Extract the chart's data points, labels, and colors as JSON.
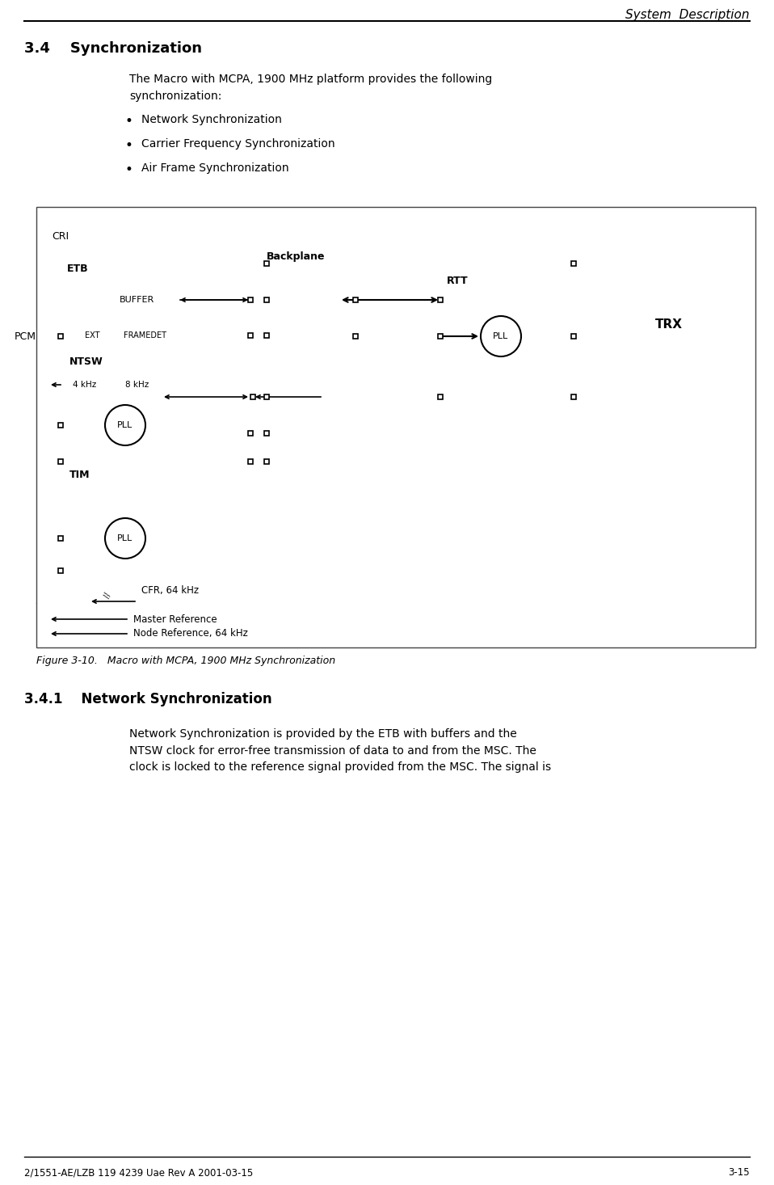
{
  "page_title": "System  Description",
  "section_title": "3.4    Synchronization",
  "body_text": "The Macro with MCPA, 1900 MHz platform provides the following\nsynchronization:",
  "bullets": [
    "Network Synchronization",
    "Carrier Frequency Synchronization",
    "Air Frame Synchronization"
  ],
  "figure_caption": "Figure 3-10.   Macro with MCPA, 1900 MHz Synchronization",
  "subsection_title": "3.4.1    Network Synchronization",
  "subsection_text": "Network Synchronization is provided by the ETB with buffers and the\nNTSW clock for error-free transmission of data to and from the MSC. The\nclock is locked to the reference signal provided from the MSC. The signal is",
  "footer_left": "2/1551-AE/LZB 119 4239 Uae Rev A 2001-03-15",
  "footer_right": "3-15",
  "bg_color": "#ffffff",
  "box_color": "#000000",
  "dashed_color": "#000000"
}
